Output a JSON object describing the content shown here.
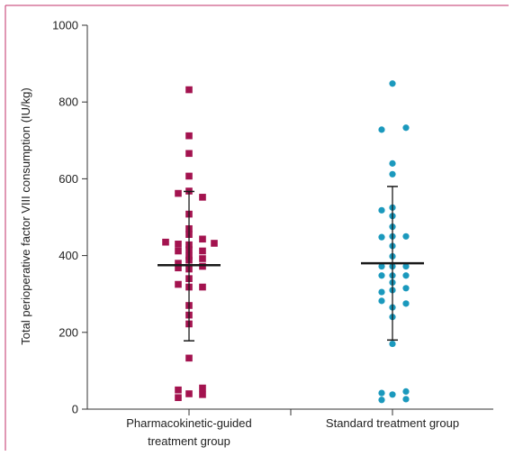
{
  "chart_data": {
    "type": "scatter",
    "title": "",
    "xlabel": "",
    "ylabel": "Total perioperative factor VIII consumption (IU/kg)",
    "ylim": [
      0,
      1000
    ],
    "yticks": [
      0,
      200,
      400,
      600,
      800,
      1000
    ],
    "grid": false,
    "categories": [
      [
        "Pharmacokinetic-guided",
        "treatment group"
      ],
      [
        "Standard treatment group"
      ]
    ],
    "series": [
      {
        "marker": "square",
        "color": "#a3134f",
        "mean": 375,
        "sd_low": 178,
        "sd_high": 567,
        "points": [
          {
            "dx": 0,
            "y": 832
          },
          {
            "dx": 0,
            "y": 712
          },
          {
            "dx": 0,
            "y": 666
          },
          {
            "dx": 0,
            "y": 607
          },
          {
            "dx": -12,
            "y": 562
          },
          {
            "dx": 0,
            "y": 568
          },
          {
            "dx": 15,
            "y": 552
          },
          {
            "dx": 0,
            "y": 508
          },
          {
            "dx": 0,
            "y": 470
          },
          {
            "dx": 0,
            "y": 455
          },
          {
            "dx": -26,
            "y": 435
          },
          {
            "dx": -12,
            "y": 430
          },
          {
            "dx": 15,
            "y": 443
          },
          {
            "dx": 28,
            "y": 432
          },
          {
            "dx": 0,
            "y": 428
          },
          {
            "dx": -12,
            "y": 412
          },
          {
            "dx": 0,
            "y": 415
          },
          {
            "dx": 15,
            "y": 412
          },
          {
            "dx": 0,
            "y": 398
          },
          {
            "dx": -12,
            "y": 380
          },
          {
            "dx": 0,
            "y": 388
          },
          {
            "dx": 15,
            "y": 392
          },
          {
            "dx": -12,
            "y": 368
          },
          {
            "dx": 0,
            "y": 365
          },
          {
            "dx": 15,
            "y": 372
          },
          {
            "dx": 0,
            "y": 340
          },
          {
            "dx": -12,
            "y": 325
          },
          {
            "dx": 15,
            "y": 318
          },
          {
            "dx": 0,
            "y": 318
          },
          {
            "dx": 0,
            "y": 270
          },
          {
            "dx": 0,
            "y": 245
          },
          {
            "dx": 0,
            "y": 222
          },
          {
            "dx": 0,
            "y": 133
          },
          {
            "dx": -12,
            "y": 50
          },
          {
            "dx": 15,
            "y": 55
          },
          {
            "dx": 0,
            "y": 40
          },
          {
            "dx": -12,
            "y": 30
          },
          {
            "dx": 15,
            "y": 38
          }
        ]
      },
      {
        "marker": "circle",
        "color": "#1b99bd",
        "mean": 380,
        "sd_low": 180,
        "sd_high": 580,
        "points": [
          {
            "dx": 0,
            "y": 848
          },
          {
            "dx": -12,
            "y": 728
          },
          {
            "dx": 15,
            "y": 733
          },
          {
            "dx": 0,
            "y": 640
          },
          {
            "dx": 0,
            "y": 612
          },
          {
            "dx": -12,
            "y": 518
          },
          {
            "dx": 0,
            "y": 525
          },
          {
            "dx": 0,
            "y": 503
          },
          {
            "dx": 0,
            "y": 475
          },
          {
            "dx": -12,
            "y": 448
          },
          {
            "dx": 0,
            "y": 450
          },
          {
            "dx": 15,
            "y": 450
          },
          {
            "dx": 0,
            "y": 425
          },
          {
            "dx": 0,
            "y": 398
          },
          {
            "dx": -12,
            "y": 372
          },
          {
            "dx": 0,
            "y": 372
          },
          {
            "dx": 15,
            "y": 372
          },
          {
            "dx": -12,
            "y": 348
          },
          {
            "dx": 0,
            "y": 348
          },
          {
            "dx": 15,
            "y": 348
          },
          {
            "dx": 0,
            "y": 330
          },
          {
            "dx": -12,
            "y": 305
          },
          {
            "dx": 0,
            "y": 310
          },
          {
            "dx": 15,
            "y": 315
          },
          {
            "dx": -12,
            "y": 282
          },
          {
            "dx": 0,
            "y": 265
          },
          {
            "dx": 15,
            "y": 275
          },
          {
            "dx": 0,
            "y": 240
          },
          {
            "dx": 0,
            "y": 170
          },
          {
            "dx": -12,
            "y": 42
          },
          {
            "dx": 15,
            "y": 46
          },
          {
            "dx": 0,
            "y": 38
          },
          {
            "dx": -12,
            "y": 24
          },
          {
            "dx": 15,
            "y": 26
          }
        ]
      }
    ]
  },
  "colors": {
    "frame": "#c0306a",
    "axis": "#333333",
    "summary": "#1a1a1a"
  }
}
